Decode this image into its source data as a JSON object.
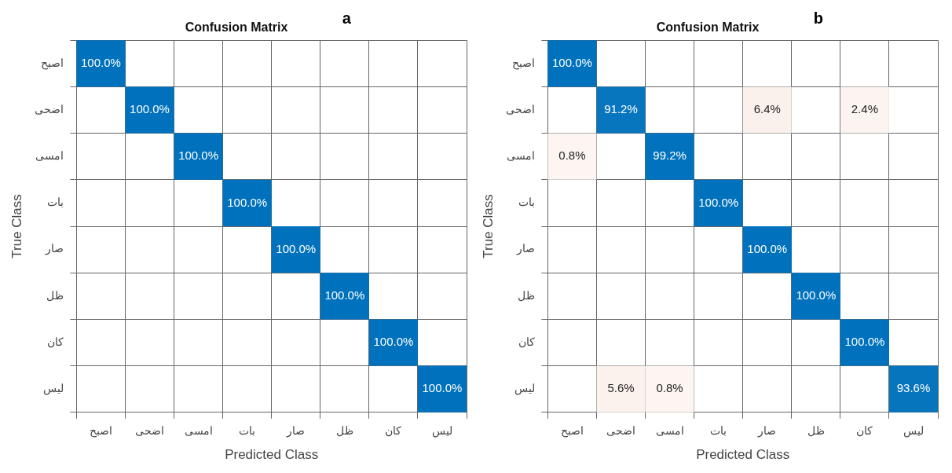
{
  "chart_data": [
    {
      "type": "heatmap",
      "title": "Confusion Matrix",
      "xlabel": "Predicted Class",
      "ylabel": "True Class",
      "annotations": [
        "a"
      ],
      "grid": true,
      "categories": [
        "اصبح",
        "اضحى",
        "امسى",
        "بات",
        "صار",
        "ظل",
        "كان",
        "ليس"
      ],
      "y_categories": [
        "اصبح",
        "اضحى",
        "امسى",
        "بات",
        "صار",
        "ظل",
        "كان",
        "ليس"
      ],
      "cells": [
        [
          100,
          null,
          null,
          null,
          null,
          null,
          null,
          null
        ],
        [
          null,
          100,
          null,
          null,
          null,
          null,
          null,
          null
        ],
        [
          null,
          null,
          100,
          null,
          null,
          null,
          null,
          null
        ],
        [
          null,
          null,
          null,
          100,
          null,
          null,
          null,
          null
        ],
        [
          null,
          null,
          null,
          null,
          100,
          null,
          null,
          null
        ],
        [
          null,
          null,
          null,
          null,
          null,
          100,
          null,
          null
        ],
        [
          null,
          null,
          null,
          null,
          null,
          null,
          100,
          null
        ],
        [
          null,
          null,
          null,
          null,
          null,
          null,
          null,
          100
        ]
      ],
      "cell_labels": [
        [
          "100.0%",
          null,
          null,
          null,
          null,
          null,
          null,
          null
        ],
        [
          null,
          "100.0%",
          null,
          null,
          null,
          null,
          null,
          null
        ],
        [
          null,
          null,
          "100.0%",
          null,
          null,
          null,
          null,
          null
        ],
        [
          null,
          null,
          null,
          "100.0%",
          null,
          null,
          null,
          null
        ],
        [
          null,
          null,
          null,
          null,
          "100.0%",
          null,
          null,
          null
        ],
        [
          null,
          null,
          null,
          null,
          null,
          "100.0%",
          null,
          null
        ],
        [
          null,
          null,
          null,
          null,
          null,
          null,
          "100.0%",
          null
        ],
        [
          null,
          null,
          null,
          null,
          null,
          null,
          null,
          "100.0%"
        ]
      ]
    },
    {
      "type": "heatmap",
      "title": "Confusion Matrix",
      "xlabel": "Predicted Class",
      "ylabel": "True Class",
      "annotations": [
        "b"
      ],
      "grid": true,
      "categories": [
        "اصبح",
        "اضحى",
        "امسى",
        "بات",
        "صار",
        "ظل",
        "كان",
        "ليس"
      ],
      "y_categories": [
        "اصبح",
        "اضحى",
        "امسى",
        "بات",
        "صار",
        "ظل",
        "كان",
        "ليس"
      ],
      "cells": [
        [
          100,
          null,
          null,
          null,
          null,
          null,
          null,
          null
        ],
        [
          null,
          91.2,
          null,
          null,
          6.4,
          null,
          2.4,
          null
        ],
        [
          0.8,
          null,
          99.2,
          null,
          null,
          null,
          null,
          null
        ],
        [
          null,
          null,
          null,
          100,
          null,
          null,
          null,
          null
        ],
        [
          null,
          null,
          null,
          null,
          100,
          null,
          null,
          null
        ],
        [
          null,
          null,
          null,
          null,
          null,
          100,
          null,
          null
        ],
        [
          null,
          null,
          null,
          null,
          null,
          null,
          100,
          null
        ],
        [
          null,
          5.6,
          0.8,
          null,
          null,
          null,
          null,
          93.6
        ]
      ],
      "cell_labels": [
        [
          "100.0%",
          null,
          null,
          null,
          null,
          null,
          null,
          null
        ],
        [
          null,
          "91.2%",
          null,
          null,
          "6.4%",
          null,
          "2.4%",
          null
        ],
        [
          "0.8%",
          null,
          "99.2%",
          null,
          null,
          null,
          null,
          null
        ],
        [
          null,
          null,
          null,
          "100.0%",
          null,
          null,
          null,
          null
        ],
        [
          null,
          null,
          null,
          null,
          "100.0%",
          null,
          null,
          null
        ],
        [
          null,
          null,
          null,
          null,
          null,
          "100.0%",
          null,
          null
        ],
        [
          null,
          null,
          null,
          null,
          null,
          null,
          "100.0%",
          null
        ],
        [
          null,
          "5.6%",
          "0.8%",
          null,
          null,
          null,
          null,
          "93.6%"
        ]
      ]
    }
  ]
}
